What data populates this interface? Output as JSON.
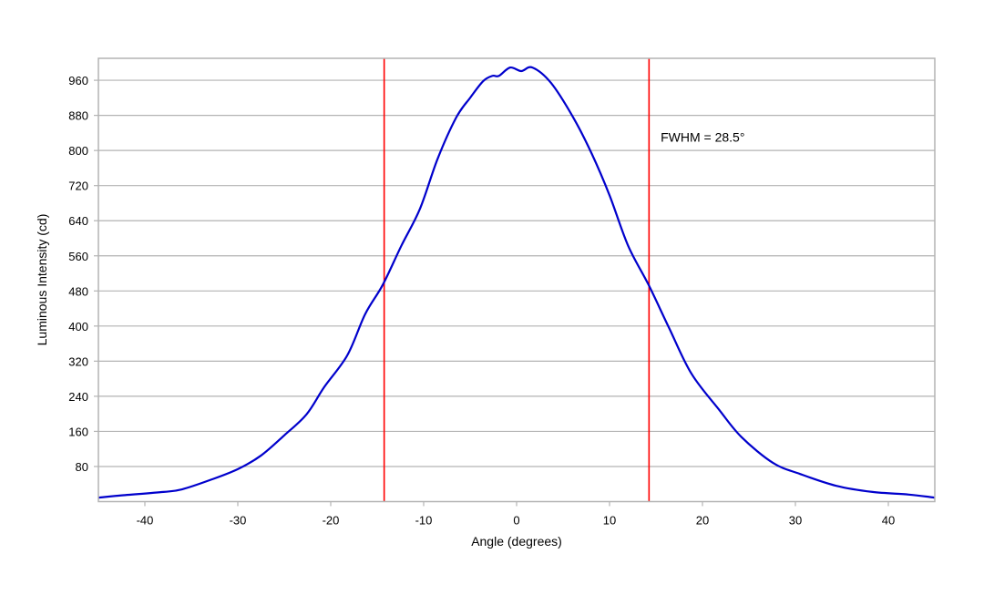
{
  "chart_data": {
    "type": "line",
    "title": "",
    "xlabel": "Angle (degrees)",
    "ylabel": "Luminous Intensity (cd)",
    "xlim": [
      -45,
      45
    ],
    "ylim": [
      0,
      1010
    ],
    "xticks": [
      -40,
      -30,
      -20,
      -10,
      0,
      10,
      20,
      30,
      40
    ],
    "yticks": [
      80,
      160,
      240,
      320,
      400,
      480,
      560,
      640,
      720,
      800,
      880,
      960
    ],
    "grid": "horizontal",
    "series": [
      {
        "color": "#0000cc",
        "x": [
          -45,
          -42.6,
          -38,
          -36,
          -33,
          -30,
          -27.5,
          -25,
          -22.6,
          -20.7,
          -18.2,
          -16.3,
          -14.4,
          -12.4,
          -10.4,
          -8.5,
          -6.5,
          -5,
          -3.6,
          -2.6,
          -1.9,
          -0.7,
          0.5,
          1.7,
          3.7,
          6.1,
          8.1,
          10,
          12,
          14.2,
          16.4,
          18.8,
          21.8,
          24.2,
          27.6,
          30.5,
          34.4,
          38.3,
          42.2,
          45
        ],
        "y": [
          9,
          14,
          22,
          28,
          49,
          74,
          105,
          151,
          199,
          261,
          334,
          427,
          494,
          583,
          667,
          781,
          875,
          920,
          958,
          970,
          970,
          989,
          981,
          989,
          954,
          875,
          792,
          698,
          583,
          494,
          396,
          292,
          209,
          147,
          88,
          63,
          36,
          22,
          16,
          9
        ]
      }
    ],
    "vertical_lines": [
      {
        "x": -14.25,
        "color": "#ff0000"
      },
      {
        "x": 14.25,
        "color": "#ff0000"
      }
    ],
    "annotations": [
      {
        "text": "FWHM = 28.5°",
        "x": 15.5,
        "y": 830
      }
    ]
  }
}
